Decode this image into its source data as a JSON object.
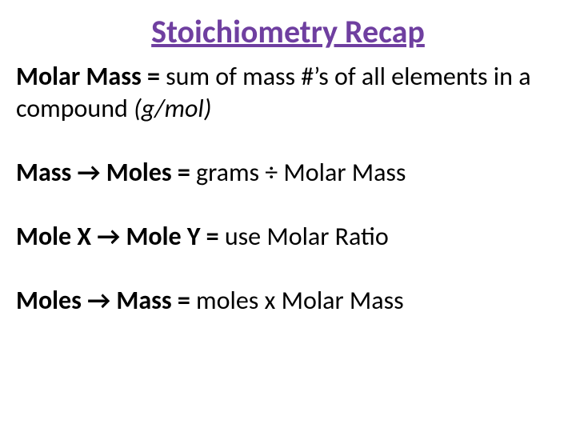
{
  "title": {
    "text": "Stoichiometry Recap",
    "color": "#6f3fa0",
    "fontsize": 40
  },
  "body": {
    "color": "#000000",
    "fontsize": 32,
    "arrow_glyph": "→",
    "lines": {
      "molar_mass": {
        "bold": "Molar Mass = ",
        "rest": "sum of mass #’s of all elements in a compound ",
        "italic": "(g/mol)"
      },
      "mass_to_moles": {
        "b1": "Mass ",
        "b2": " Moles = ",
        "rest": "grams ÷ Molar  Mass"
      },
      "mole_x_y": {
        "b1": "Mole X ",
        "b2": " Mole Y = ",
        "rest": "use Molar Ratio"
      },
      "moles_to_mass": {
        "b1": "Moles ",
        "b2": " Mass = ",
        "rest": "moles x Molar Mass"
      }
    }
  }
}
